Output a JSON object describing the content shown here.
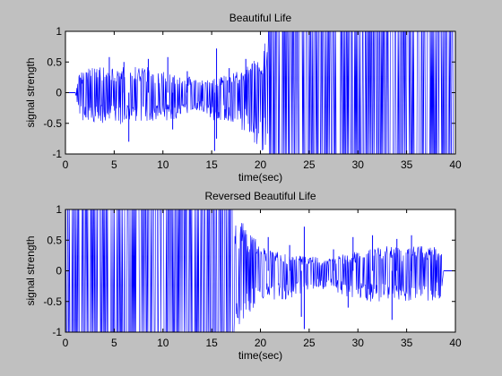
{
  "figure": {
    "background": "#c0c0c0",
    "axes_background": "#ffffff",
    "line_color": "#0000ff"
  },
  "chart_data": [
    {
      "type": "line",
      "title": "Beautiful Life",
      "xlabel": "time(sec)",
      "ylabel": "signal strength",
      "xlim": [
        0,
        40
      ],
      "ylim": [
        -1,
        1
      ],
      "xticks": [
        0,
        5,
        10,
        15,
        20,
        25,
        30,
        35,
        40
      ],
      "yticks": [
        1,
        0.5,
        0,
        -0.5,
        -1
      ],
      "ytick_labels": [
        "1",
        "0.5",
        "0",
        "-0.5",
        "-1"
      ],
      "grid": false,
      "series": [
        {
          "color": "#0000ff",
          "envelope": {
            "x": [
              0,
              1,
              1.5,
              3,
              5,
              7,
              9,
              11,
              13,
              14,
              15.5,
              17,
              19,
              20,
              20.8,
              22.5,
              25,
              30,
              35,
              39.8
            ],
            "upper": [
              0,
              0,
              0.35,
              0.45,
              0.4,
              0.45,
              0.4,
              0.35,
              0.25,
              0.2,
              0.25,
              0.3,
              0.45,
              0.65,
              1.0,
              1.0,
              1.0,
              1.0,
              1.0,
              1.0
            ],
            "lower": [
              0,
              0,
              -0.45,
              -0.5,
              -0.55,
              -0.5,
              -0.5,
              -0.45,
              -0.3,
              -0.3,
              -0.5,
              -0.5,
              -0.7,
              -1.0,
              -1.0,
              -1.0,
              -1.0,
              -1.0,
              -1.0,
              -1.0
            ]
          },
          "peaks": [
            {
              "x": 4.5,
              "y": 0.58
            },
            {
              "x": 6.0,
              "y": 0.5
            },
            {
              "x": 8.5,
              "y": 0.55
            },
            {
              "x": 10.5,
              "y": 0.58
            },
            {
              "x": 12.5,
              "y": 0.35
            },
            {
              "x": 15.3,
              "y": -0.95
            },
            {
              "x": 15.5,
              "y": 0.72
            },
            {
              "x": 16.8,
              "y": 0.4
            },
            {
              "x": 18.5,
              "y": 0.55
            },
            {
              "x": 6.5,
              "y": -0.8
            },
            {
              "x": 11.0,
              "y": -0.6
            },
            {
              "x": 15.5,
              "y": -0.75
            }
          ]
        }
      ]
    },
    {
      "type": "line",
      "title": "Reversed Beautiful Life",
      "xlabel": "time(sec)",
      "ylabel": "signal strength",
      "xlim": [
        0,
        40
      ],
      "ylim": [
        -1,
        1
      ],
      "xticks": [
        0,
        5,
        10,
        15,
        20,
        25,
        30,
        35,
        40
      ],
      "yticks": [
        1,
        0.5,
        0,
        -0.5,
        -1
      ],
      "ytick_labels": [
        "1",
        "0.5",
        "0",
        "-0.5",
        "-1"
      ],
      "grid": false,
      "series": [
        {
          "color": "#0000ff",
          "envelope": {
            "x": [
              0,
              5,
              10,
              15,
              17.3,
              19,
              20,
              21,
              23,
              25,
              27,
              29,
              31,
              33,
              35,
              37,
              38.5,
              38.8,
              40
            ],
            "upper": [
              1.0,
              1.0,
              1.0,
              1.0,
              1.0,
              0.65,
              0.45,
              0.35,
              0.25,
              0.25,
              0.2,
              0.3,
              0.35,
              0.4,
              0.4,
              0.45,
              0.4,
              0,
              0
            ],
            "lower": [
              -1.0,
              -1.0,
              -1.0,
              -1.0,
              -1.0,
              -0.7,
              -0.5,
              -0.5,
              -0.45,
              -0.3,
              -0.3,
              -0.45,
              -0.5,
              -0.5,
              -0.5,
              -0.55,
              -0.45,
              0,
              0
            ]
          },
          "peaks": [
            {
              "x": 20.8,
              "y": 0.55
            },
            {
              "x": 23.0,
              "y": 0.42
            },
            {
              "x": 24.5,
              "y": 0.72
            },
            {
              "x": 27.5,
              "y": 0.35
            },
            {
              "x": 29.5,
              "y": 0.55
            },
            {
              "x": 31.5,
              "y": 0.58
            },
            {
              "x": 34.0,
              "y": 0.52
            },
            {
              "x": 35.5,
              "y": 0.58
            },
            {
              "x": 24.5,
              "y": -0.95
            },
            {
              "x": 33.5,
              "y": -0.8
            },
            {
              "x": 29.0,
              "y": -0.6
            },
            {
              "x": 24.2,
              "y": -0.75
            }
          ]
        }
      ]
    }
  ]
}
